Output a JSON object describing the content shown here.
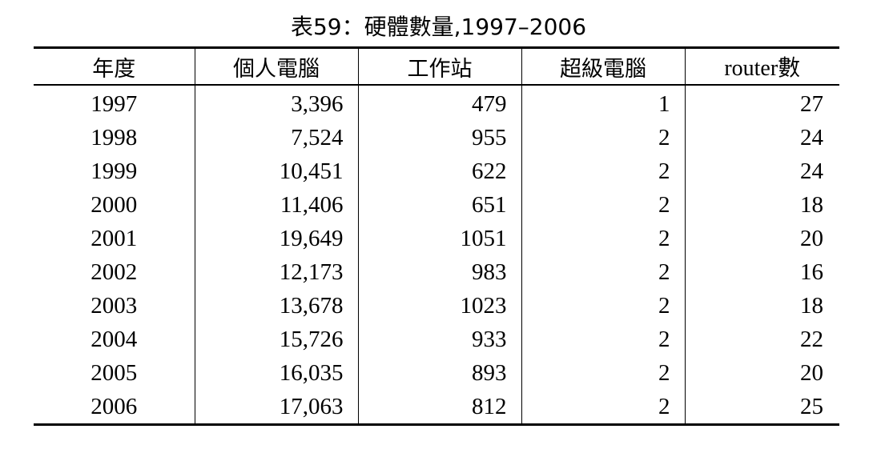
{
  "caption": "表59：硬體數量,1997–2006",
  "table": {
    "headers": [
      "年度",
      "個人電腦",
      "工作站",
      "超級電腦",
      "router數"
    ],
    "rows": [
      [
        "1997",
        "3,396",
        "479",
        "1",
        "27"
      ],
      [
        "1998",
        "7,524",
        "955",
        "2",
        "24"
      ],
      [
        "1999",
        "10,451",
        "622",
        "2",
        "24"
      ],
      [
        "2000",
        "11,406",
        "651",
        "2",
        "18"
      ],
      [
        "2001",
        "19,649",
        "1051",
        "2",
        "20"
      ],
      [
        "2002",
        "12,173",
        "983",
        "2",
        "16"
      ],
      [
        "2003",
        "13,678",
        "1023",
        "2",
        "18"
      ],
      [
        "2004",
        "15,726",
        "933",
        "2",
        "22"
      ],
      [
        "2005",
        "16,035",
        "893",
        "2",
        "20"
      ],
      [
        "2006",
        "17,063",
        "812",
        "2",
        "25"
      ]
    ]
  }
}
